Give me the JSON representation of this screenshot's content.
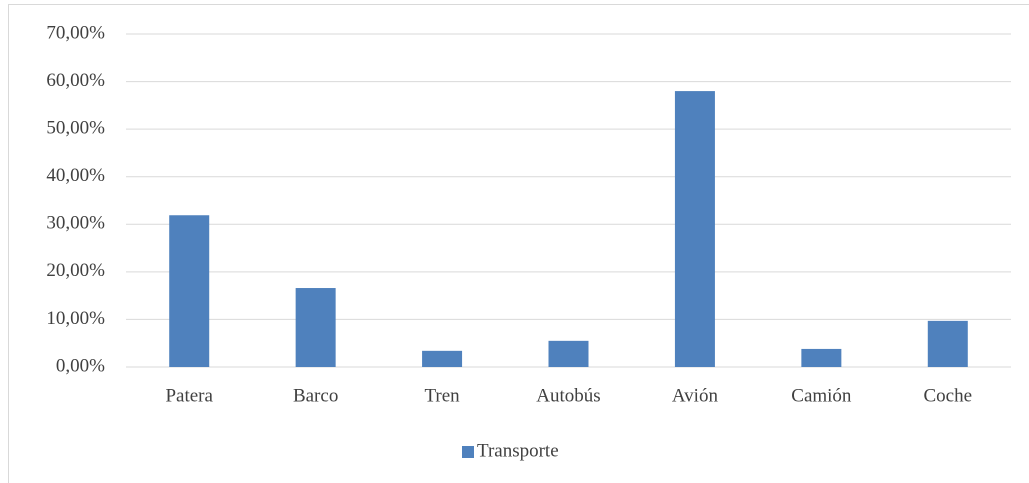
{
  "chart_data": {
    "type": "bar",
    "categories": [
      "Patera",
      "Barco",
      "Tren",
      "Autobús",
      "Avión",
      "Camión",
      "Coche"
    ],
    "series": [
      {
        "name": "Transporte",
        "color": "#4f81bd",
        "values": [
          31.9,
          16.6,
          3.4,
          5.5,
          58.0,
          3.8,
          9.7
        ]
      }
    ],
    "ylim": [
      0,
      70
    ],
    "yticks": [
      {
        "value": 0,
        "label": "0,00%"
      },
      {
        "value": 10,
        "label": "10,00%"
      },
      {
        "value": 20,
        "label": "20,00%"
      },
      {
        "value": 30,
        "label": "30,00%"
      },
      {
        "value": 40,
        "label": "40,00%"
      },
      {
        "value": 50,
        "label": "50,00%"
      },
      {
        "value": 60,
        "label": "60,00%"
      },
      {
        "value": 70,
        "label": "70,00%"
      }
    ],
    "grid": true,
    "legend": "bottom"
  }
}
